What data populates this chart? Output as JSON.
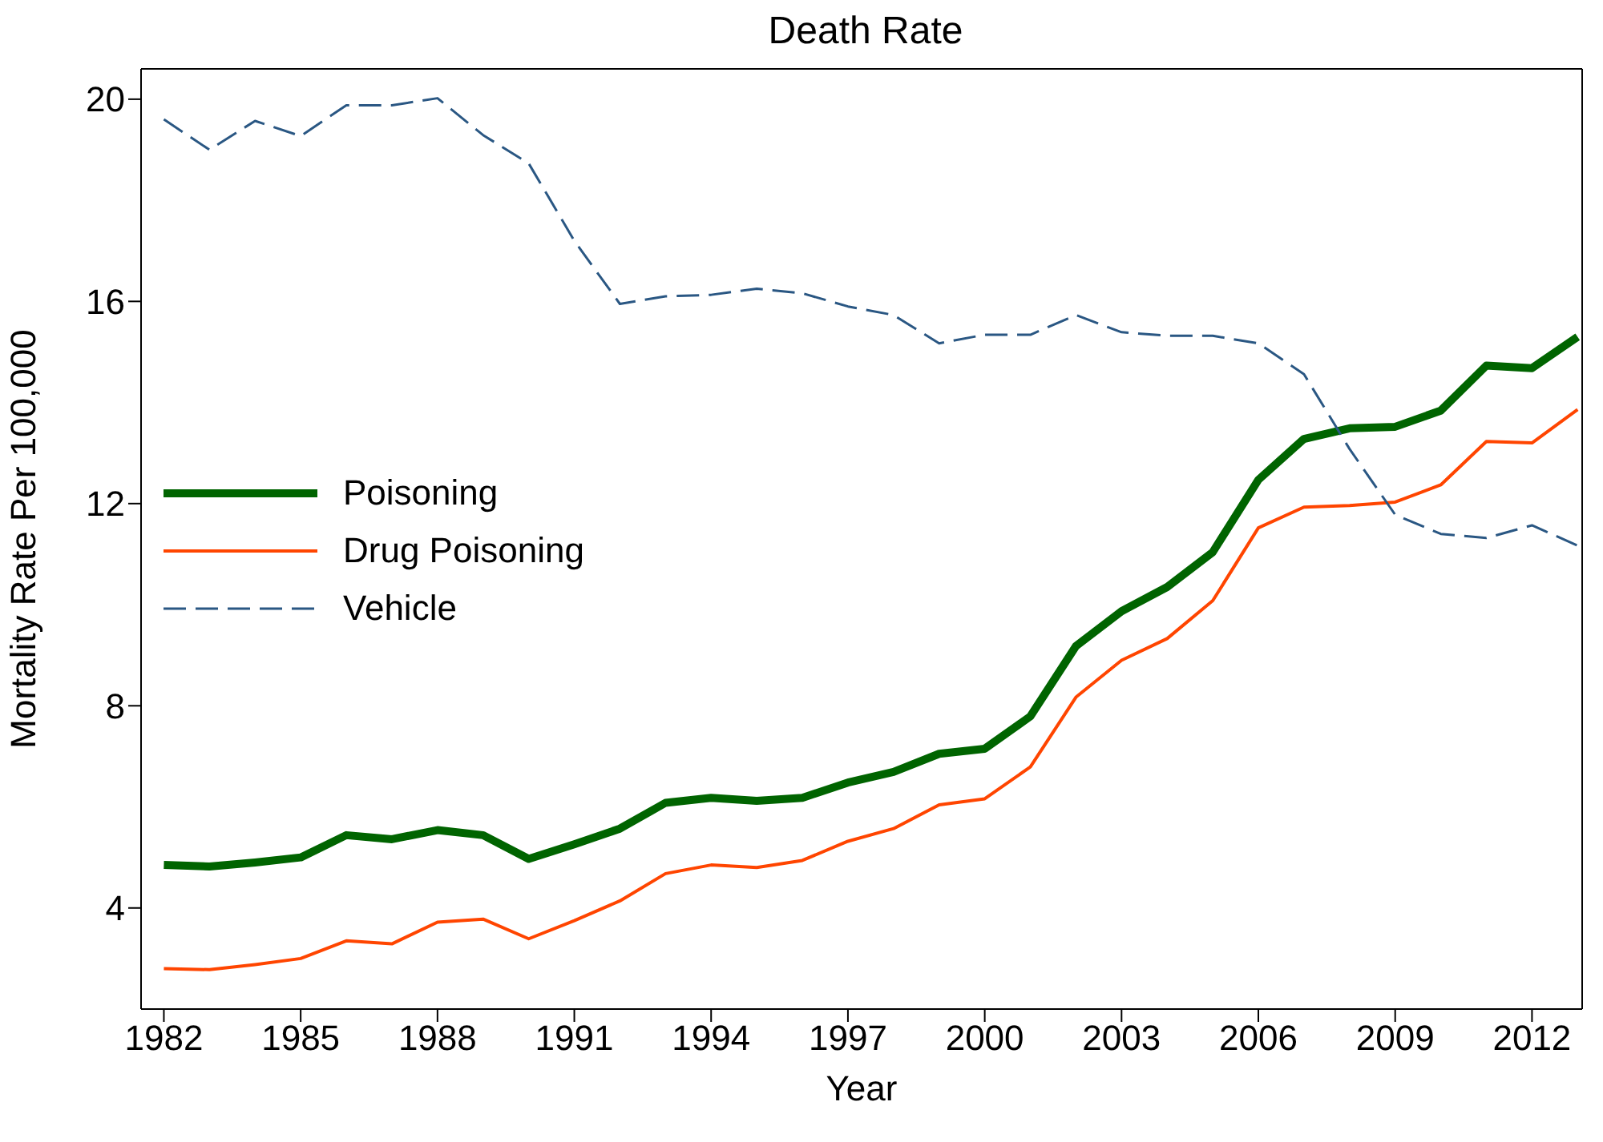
{
  "chart_data": {
    "type": "line",
    "title": "Death Rate",
    "xlabel": "Year",
    "ylabel": "Mortality Rate Per 100,000",
    "x": [
      1982,
      1983,
      1984,
      1985,
      1986,
      1987,
      1988,
      1989,
      1990,
      1991,
      1992,
      1993,
      1994,
      1995,
      1996,
      1997,
      1998,
      1999,
      2000,
      2001,
      2002,
      2003,
      2004,
      2005,
      2006,
      2007,
      2008,
      2009,
      2010,
      2011,
      2012,
      2013
    ],
    "series": [
      {
        "name": "Poisoning",
        "color": "#006400",
        "line_style": "solid",
        "values": [
          4.85,
          4.82,
          4.9,
          5.0,
          5.44,
          5.36,
          5.54,
          5.44,
          4.97,
          5.26,
          5.57,
          6.08,
          6.18,
          6.12,
          6.18,
          6.48,
          6.69,
          7.05,
          7.15,
          7.79,
          9.18,
          9.87,
          10.35,
          11.04,
          12.47,
          13.28,
          13.49,
          13.52,
          13.84,
          14.73,
          14.68,
          15.3
        ]
      },
      {
        "name": "Drug Poisoning",
        "color": "#ff4500",
        "line_style": "solid",
        "values": [
          2.8,
          2.78,
          2.88,
          3.0,
          3.35,
          3.29,
          3.72,
          3.78,
          3.39,
          3.75,
          4.14,
          4.68,
          4.85,
          4.8,
          4.94,
          5.32,
          5.57,
          6.04,
          6.16,
          6.79,
          8.17,
          8.9,
          9.33,
          10.08,
          11.52,
          11.93,
          11.96,
          12.03,
          12.37,
          13.23,
          13.2,
          13.86
        ]
      },
      {
        "name": "Vehicle",
        "color": "#2a5783",
        "line_style": "dashed",
        "values": [
          19.6,
          19.0,
          19.57,
          19.27,
          19.88,
          19.88,
          20.02,
          19.29,
          18.73,
          17.2,
          15.95,
          16.1,
          16.13,
          16.25,
          16.16,
          15.9,
          15.73,
          15.17,
          15.34,
          15.34,
          15.73,
          15.39,
          15.32,
          15.32,
          15.17,
          14.56,
          13.08,
          11.78,
          11.4,
          11.32,
          11.57,
          11.17
        ]
      }
    ],
    "xlim": [
      1981.5,
      2013.1
    ],
    "xticks": [
      1982,
      1985,
      1988,
      1991,
      1994,
      1997,
      2000,
      2003,
      2006,
      2009,
      2012
    ],
    "ylim": [
      2,
      20.6
    ],
    "yticks": [
      4,
      8,
      12,
      16,
      20
    ],
    "grid": false,
    "legend": "left",
    "marker": "none"
  }
}
